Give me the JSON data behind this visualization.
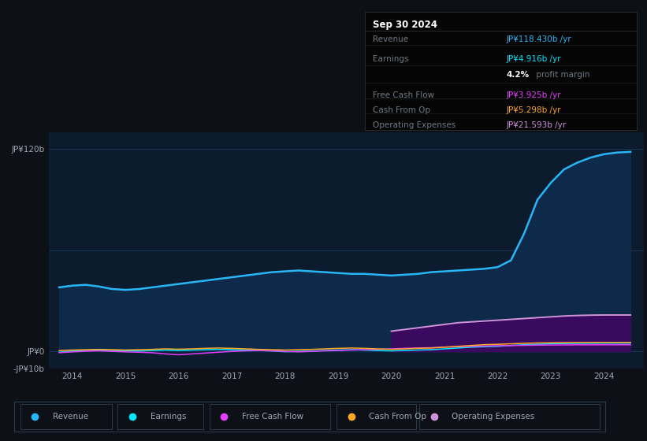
{
  "bg_color": "#0d1117",
  "chart_bg": "#0d1b2e",
  "title": "Sep 30 2024",
  "tooltip": {
    "Revenue": "JP¥118.430b /yr",
    "Earnings": "JP¥4.916b /yr",
    "profit_margin_pct": "4.2%",
    "profit_margin_text": " profit margin",
    "Free Cash Flow": "JP¥3.925b /yr",
    "Cash From Op": "JP¥5.298b /yr",
    "Operating Expenses": "JP¥21.593b /yr"
  },
  "years": [
    2013.75,
    2014,
    2014.25,
    2014.5,
    2014.75,
    2015,
    2015.25,
    2015.5,
    2015.75,
    2016,
    2016.25,
    2016.5,
    2016.75,
    2017,
    2017.25,
    2017.5,
    2017.75,
    2018,
    2018.25,
    2018.5,
    2018.75,
    2019,
    2019.25,
    2019.5,
    2019.75,
    2020,
    2020.25,
    2020.5,
    2020.75,
    2021,
    2021.25,
    2021.5,
    2021.75,
    2022,
    2022.25,
    2022.5,
    2022.75,
    2023,
    2023.25,
    2023.5,
    2023.75,
    2024,
    2024.25,
    2024.5
  ],
  "revenue": [
    38,
    39,
    39.5,
    38.5,
    37,
    36.5,
    37,
    38,
    39,
    40,
    41,
    42,
    43,
    44,
    45,
    46,
    47,
    47.5,
    48,
    47.5,
    47,
    46.5,
    46,
    46,
    45.5,
    45,
    45.5,
    46,
    47,
    47.5,
    48,
    48.5,
    49,
    50,
    54,
    70,
    90,
    100,
    108,
    112,
    115,
    117,
    118,
    118.4
  ],
  "earnings": [
    -0.5,
    0.2,
    0.5,
    0.8,
    0.5,
    0.3,
    0.2,
    0.5,
    0.8,
    0.5,
    0.8,
    1.0,
    1.2,
    1.0,
    0.8,
    0.5,
    0.3,
    -0.2,
    0.0,
    0.2,
    0.5,
    0.8,
    1.0,
    0.8,
    0.5,
    0.3,
    0.5,
    0.8,
    1.0,
    1.5,
    2.0,
    2.5,
    2.8,
    3.0,
    3.5,
    4.0,
    4.2,
    4.5,
    4.7,
    4.8,
    4.85,
    4.9,
    4.916,
    4.916
  ],
  "free_cash_flow": [
    -0.8,
    -0.3,
    0.1,
    0.3,
    0.0,
    -0.3,
    -0.5,
    -0.8,
    -1.5,
    -2.0,
    -1.5,
    -1.0,
    -0.5,
    0.0,
    0.3,
    0.5,
    0.3,
    0.0,
    -0.3,
    0.0,
    0.3,
    0.5,
    0.8,
    1.0,
    1.2,
    1.5,
    1.8,
    2.0,
    2.2,
    2.5,
    2.8,
    3.0,
    3.2,
    3.4,
    3.5,
    3.6,
    3.7,
    3.8,
    3.85,
    3.9,
    3.91,
    3.92,
    3.925,
    3.925
  ],
  "cash_from_op": [
    0.5,
    0.8,
    1.0,
    1.2,
    1.0,
    0.8,
    1.0,
    1.2,
    1.5,
    1.3,
    1.5,
    1.8,
    2.0,
    1.8,
    1.5,
    1.2,
    1.0,
    0.8,
    1.0,
    1.2,
    1.5,
    1.8,
    2.0,
    1.8,
    1.5,
    1.2,
    1.5,
    1.8,
    2.0,
    2.5,
    3.0,
    3.5,
    4.0,
    4.2,
    4.5,
    4.8,
    5.0,
    5.1,
    5.2,
    5.25,
    5.28,
    5.29,
    5.298,
    5.298
  ],
  "operating_expenses": [
    0,
    0,
    0,
    0,
    0,
    0,
    0,
    0,
    0,
    0,
    0,
    0,
    0,
    0,
    0,
    0,
    0,
    0,
    0,
    0,
    0,
    0,
    0,
    0,
    0,
    12,
    13,
    14,
    15,
    16,
    17,
    17.5,
    18,
    18.5,
    19,
    19.5,
    20,
    20.5,
    21,
    21.3,
    21.5,
    21.59,
    21.593,
    21.593
  ],
  "ylim": [
    -10,
    130
  ],
  "xticks": [
    2014,
    2015,
    2016,
    2017,
    2018,
    2019,
    2020,
    2021,
    2022,
    2023,
    2024
  ],
  "line_colors": {
    "revenue": "#29b6f6",
    "earnings": "#00e5ff",
    "free_cash_flow": "#e040fb",
    "cash_from_op": "#ffa726",
    "operating_expenses": "#ce93d8"
  },
  "fill_revenue": "#0d2a4a",
  "fill_opex": "#3a0a5e",
  "legend_labels": [
    "Revenue",
    "Earnings",
    "Free Cash Flow",
    "Cash From Op",
    "Operating Expenses"
  ],
  "legend_colors": [
    "#29b6f6",
    "#00e5ff",
    "#e040fb",
    "#ffa726",
    "#ce93d8"
  ],
  "grid_color": "#1e3a5f",
  "text_color": "#9ea8b3",
  "tooltip_bg": "#050505",
  "tooltip_title_color": "#ffffff",
  "tooltip_label_color": "#6e7a85",
  "tooltip_revenue_color": "#29b6f6",
  "tooltip_earnings_color": "#00e5ff",
  "tooltip_cashflow_color": "#e040fb",
  "tooltip_cashop_color": "#ffa726",
  "tooltip_opex_color": "#ce93d8",
  "tooltip_pct_color": "#ffffff"
}
